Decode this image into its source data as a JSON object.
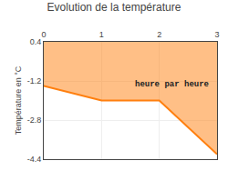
{
  "chart_data": {
    "type": "area",
    "title": "Evolution de la température",
    "y_label": "Température en °C",
    "annotations": [
      {
        "text": "heure par heure",
        "x": 1.55,
        "y": -1.1
      }
    ],
    "x": [
      0,
      1,
      2,
      3
    ],
    "values": [
      -1.4,
      -2.0,
      -2.0,
      -4.2
    ],
    "xlim": [
      0,
      3
    ],
    "ylim": [
      -4.4,
      0.4
    ],
    "xticks": [
      0,
      1,
      2,
      3
    ],
    "yticks": [
      0.4,
      -1.2,
      -2.8,
      -4.4
    ],
    "grid": true
  }
}
